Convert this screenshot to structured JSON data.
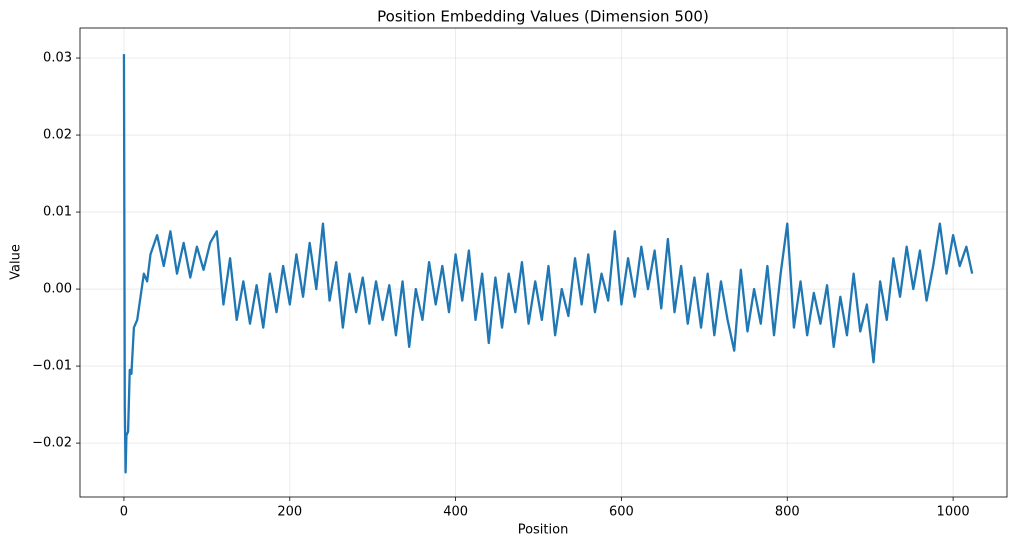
{
  "chart_data": {
    "type": "line",
    "title": "Position Embedding Values (Dimension 500)",
    "xlabel": "Position",
    "ylabel": "Value",
    "color": "#1f77b4",
    "grid": true,
    "xlim": [
      -53,
      1065
    ],
    "ylim": [
      -0.027,
      0.0339
    ],
    "xticks": [
      0,
      200,
      400,
      600,
      800,
      1000
    ],
    "yticks": [
      {
        "value": -0.02,
        "label": "−0.02"
      },
      {
        "value": -0.01,
        "label": "−0.01"
      },
      {
        "value": 0,
        "label": "0.00"
      },
      0.01,
      0.02,
      0.03
    ],
    "x": [
      0,
      1,
      2,
      3,
      5,
      7,
      9,
      12,
      16,
      20,
      24,
      28,
      32,
      40,
      48,
      56,
      64,
      72,
      80,
      88,
      96,
      104,
      112,
      120,
      128,
      136,
      144,
      152,
      160,
      168,
      176,
      184,
      192,
      200,
      208,
      216,
      224,
      232,
      240,
      248,
      256,
      264,
      272,
      280,
      288,
      296,
      304,
      312,
      320,
      328,
      336,
      344,
      352,
      360,
      368,
      376,
      384,
      392,
      400,
      408,
      416,
      424,
      432,
      440,
      448,
      456,
      464,
      472,
      480,
      488,
      496,
      504,
      512,
      520,
      528,
      536,
      544,
      552,
      560,
      568,
      576,
      584,
      592,
      600,
      608,
      616,
      624,
      632,
      640,
      648,
      656,
      664,
      672,
      680,
      688,
      696,
      704,
      712,
      720,
      728,
      736,
      744,
      752,
      760,
      768,
      776,
      784,
      792,
      800,
      808,
      816,
      824,
      832,
      840,
      848,
      856,
      864,
      872,
      880,
      888,
      896,
      904,
      912,
      920,
      928,
      936,
      944,
      952,
      960,
      968,
      976,
      984,
      992,
      1000,
      1008,
      1016,
      1023
    ],
    "values": [
      0.0305,
      -0.015,
      -0.0238,
      -0.019,
      -0.0185,
      -0.0105,
      -0.011,
      -0.005,
      -0.004,
      -0.001,
      0.002,
      0.001,
      0.0045,
      0.007,
      0.003,
      0.0075,
      0.002,
      0.006,
      0.0015,
      0.0055,
      0.0025,
      0.006,
      0.0075,
      -0.002,
      0.004,
      -0.004,
      0.001,
      -0.0045,
      0.0005,
      -0.005,
      0.002,
      -0.003,
      0.003,
      -0.002,
      0.0045,
      -0.001,
      0.006,
      0,
      0.0085,
      -0.0015,
      0.0035,
      -0.005,
      0.002,
      -0.003,
      0.0015,
      -0.0045,
      0.001,
      -0.004,
      0.0005,
      -0.006,
      0.001,
      -0.0075,
      0,
      -0.004,
      0.0035,
      -0.002,
      0.003,
      -0.003,
      0.0045,
      -0.0015,
      0.005,
      -0.004,
      0.002,
      -0.007,
      0.0015,
      -0.005,
      0.002,
      -0.003,
      0.0035,
      -0.0045,
      0.001,
      -0.004,
      0.003,
      -0.006,
      0,
      -0.0035,
      0.004,
      -0.002,
      0.0045,
      -0.003,
      0.002,
      -0.0015,
      0.0075,
      -0.002,
      0.004,
      -0.001,
      0.0055,
      0,
      0.005,
      -0.0025,
      0.0065,
      -0.003,
      0.003,
      -0.0045,
      0.0015,
      -0.005,
      0.002,
      -0.006,
      0.001,
      -0.004,
      -0.008,
      0.0025,
      -0.0055,
      0,
      -0.0045,
      0.003,
      -0.006,
      0.002,
      0.0085,
      -0.005,
      0.001,
      -0.006,
      -0.0005,
      -0.0045,
      0.0005,
      -0.0075,
      -0.001,
      -0.006,
      0.002,
      -0.0055,
      -0.002,
      -0.0095,
      0.001,
      -0.004,
      0.004,
      -0.001,
      0.0055,
      0,
      0.005,
      -0.0015,
      0.003,
      0.0085,
      0.002,
      0.007,
      0.003,
      0.0055,
      0.002
    ]
  }
}
